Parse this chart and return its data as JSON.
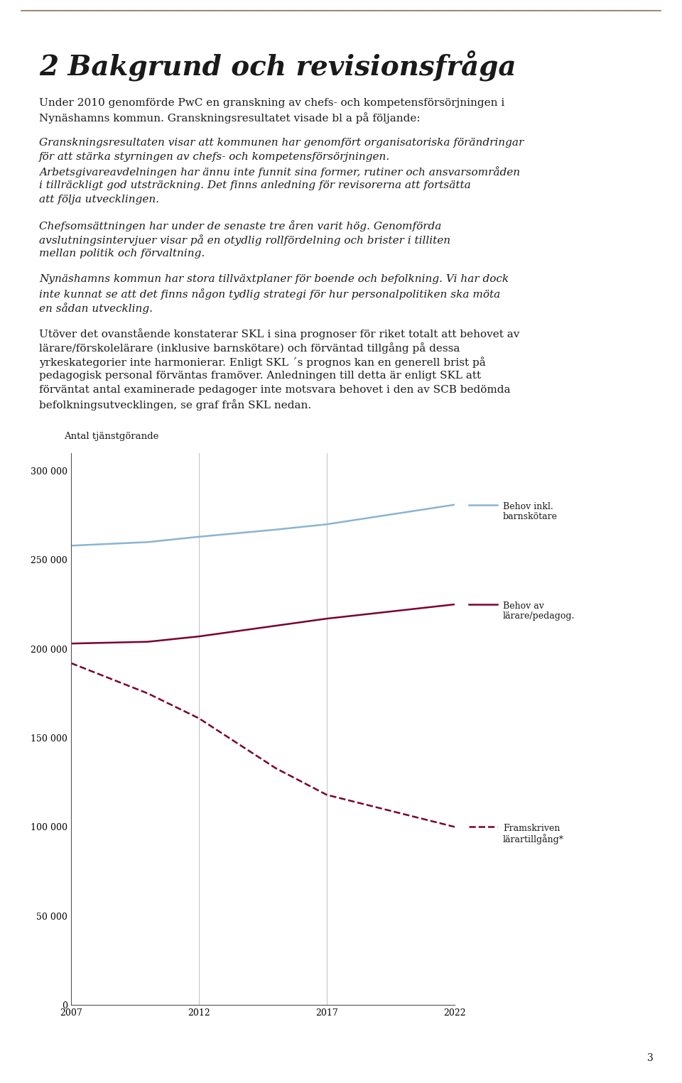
{
  "title": "2 Bakgrund och revisionsfråga",
  "title_color": "#1a1a1a",
  "title_fontsize": 28,
  "background_color": "#ffffff",
  "top_border_color": "#8B7355",
  "page_number": "3",
  "paragraphs": [
    {
      "text": "Under 2010 genomförde PwC en granskning av chefs- och kompetensförsörjningen i Nynäshamns kommun. Granskningsresultatet visade bl a på följande:",
      "style": "normal",
      "fontsize": 11
    },
    {
      "text": "Granskningsresultaten visar att kommunen har genomfört organisatoriska förändringar för att stärka styrningen av chefs- och kompetensförsörjningen. Arbetsgivareavdelningen har ännu inte funnit sina former, rutiner och ansvarsområden i tillräckligt god utsträckning.  Det finns anledning för revisorerna att fortsätta att följa utvecklingen.",
      "style": "italic",
      "fontsize": 11
    },
    {
      "text": "Chefsomsättningen har under de senaste tre åren varit hög. Genomförda avslutningsintervjuer visar på en otydlig rollfördelning och brister i tilliten mellan politik och förvaltning.",
      "style": "italic",
      "fontsize": 11
    },
    {
      "text": "Nynäshamns kommun har stora tillväxtplaner för boende och befolkning. Vi har dock inte kunnat se att det finns någon tydlig strategi för hur personalpolitiken ska möta en sådan utveckling.",
      "style": "italic",
      "fontsize": 11
    },
    {
      "text": "Utöver det ovanstående konstaterar SKL i sina prognoser för riket totalt att behovet av lärare/förskolelärare (inklusive barnskötare) och förväntad tillgång på dessa yrkeskategorier inte harmonierar. Enligt SKL ´s prognos kan en generell brist på pedagogisk personal förväntas framöver. Anledningen till detta är enligt SKL att förväntat antal examinerade pedagoger inte motsvara behovet i den av SCB bedömda befolkningsutvecklingen, se graf från SKL nedan.",
      "style": "normal",
      "fontsize": 11
    }
  ],
  "chart": {
    "ylabel": "Antal tjänstgörande",
    "ylim": [
      0,
      310000
    ],
    "yticks": [
      0,
      50000,
      100000,
      150000,
      200000,
      250000,
      300000
    ],
    "ytick_labels": [
      "0",
      "50 000",
      "100 000",
      "150 000",
      "200 000",
      "250 000",
      "300 000"
    ],
    "xlim": [
      2007,
      2022
    ],
    "xticks": [
      2007,
      2012,
      2017,
      2022
    ],
    "series": [
      {
        "name": "Behov inkl.\nbarnskötare",
        "color": "#8ab4d4",
        "linestyle": "solid",
        "linewidth": 1.8,
        "x": [
          2007,
          2010,
          2012,
          2015,
          2017,
          2022
        ],
        "y": [
          258000,
          260000,
          263000,
          267000,
          270000,
          281000
        ]
      },
      {
        "name": "Behov av\nlärare/pedagog.",
        "color": "#7a0030",
        "linestyle": "solid",
        "linewidth": 1.8,
        "x": [
          2007,
          2010,
          2012,
          2015,
          2017,
          2022
        ],
        "y": [
          203000,
          204000,
          207000,
          213000,
          217000,
          225000
        ]
      },
      {
        "name": "Framskriven\nlärartillgång*",
        "color": "#7a0030",
        "linestyle": "dashed",
        "linewidth": 1.8,
        "x": [
          2007,
          2010,
          2012,
          2015,
          2017,
          2022
        ],
        "y": [
          192000,
          175000,
          161000,
          133000,
          118000,
          100000
        ]
      }
    ],
    "legend_fontsize": 9,
    "axis_fontsize": 9,
    "ylabel_fontsize": 9.5
  }
}
